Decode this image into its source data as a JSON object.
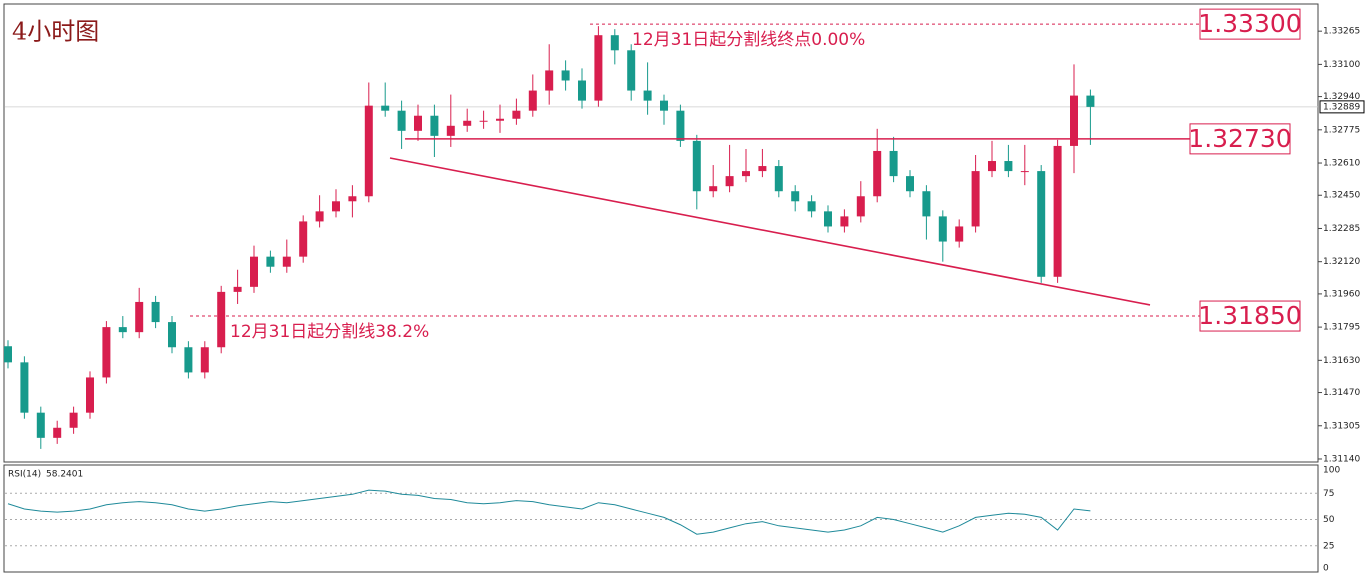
{
  "chart_data": {
    "type": "candlestick",
    "title": "4小时图",
    "up_color": "#d81e4e",
    "down_color": "#179a8c",
    "open": [
      1.317,
      1.3162,
      1.3137,
      1.31245,
      1.31295,
      1.3137,
      1.31545,
      1.31795,
      1.3177,
      1.3192,
      1.3182,
      1.31695,
      1.3157,
      1.31695,
      1.3197,
      1.31995,
      1.32145,
      1.32095,
      1.32145,
      1.3232,
      1.3237,
      1.3242,
      1.32445,
      1.32895,
      1.3287,
      1.3277,
      1.32845,
      1.32745,
      1.32795,
      1.3282,
      1.3282,
      1.3283,
      1.3287,
      1.3297,
      1.3307,
      1.3302,
      1.3292,
      1.33245,
      1.3317,
      1.3297,
      1.3292,
      1.3287,
      1.3272,
      1.3247,
      1.32495,
      1.32545,
      1.3257,
      1.32595,
      1.3247,
      1.3242,
      1.3237,
      1.32295,
      1.32345,
      1.32445,
      1.3267,
      1.32545,
      1.3247,
      1.32345,
      1.3222,
      1.32295,
      1.3257,
      1.3262,
      1.3257,
      1.3257,
      1.32045,
      1.32695,
      1.32945
    ],
    "high": [
      1.3173,
      1.3165,
      1.314,
      1.3133,
      1.314,
      1.31575,
      1.31825,
      1.3185,
      1.3199,
      1.3195,
      1.3185,
      1.31725,
      1.31725,
      1.32,
      1.3208,
      1.322,
      1.32175,
      1.3223,
      1.3235,
      1.3245,
      1.3248,
      1.325,
      1.3301,
      1.3301,
      1.3292,
      1.329,
      1.329,
      1.3295,
      1.3288,
      1.3287,
      1.329,
      1.3293,
      1.3305,
      1.332,
      1.3312,
      1.3308,
      1.3329,
      1.33275,
      1.332,
      1.3311,
      1.3295,
      1.329,
      1.3275,
      1.326,
      1.327,
      1.3268,
      1.3268,
      1.32625,
      1.325,
      1.3245,
      1.324,
      1.3238,
      1.3252,
      1.3278,
      1.3274,
      1.32575,
      1.325,
      1.32375,
      1.3233,
      1.3265,
      1.3272,
      1.327,
      1.327,
      1.326,
      1.32725,
      1.331,
      1.32975
    ],
    "low": [
      1.3159,
      1.3134,
      1.3119,
      1.31215,
      1.31265,
      1.3134,
      1.31515,
      1.3174,
      1.3174,
      1.3179,
      1.31665,
      1.3154,
      1.3154,
      1.31665,
      1.3191,
      1.31965,
      1.32065,
      1.32065,
      1.32115,
      1.3229,
      1.3234,
      1.3234,
      1.32415,
      1.3284,
      1.3268,
      1.3272,
      1.3264,
      1.3269,
      1.32765,
      1.3278,
      1.3276,
      1.328,
      1.3284,
      1.329,
      1.3297,
      1.3288,
      1.3289,
      1.331,
      1.3292,
      1.3285,
      1.328,
      1.3269,
      1.3238,
      1.3244,
      1.32465,
      1.32515,
      1.3254,
      1.3244,
      1.3237,
      1.3234,
      1.32265,
      1.32265,
      1.32315,
      1.32415,
      1.32515,
      1.3244,
      1.3223,
      1.3212,
      1.3219,
      1.32265,
      1.3254,
      1.3254,
      1.325,
      1.32015,
      1.32015,
      1.3256,
      1.327
    ],
    "close": [
      1.3162,
      1.3137,
      1.31245,
      1.31295,
      1.3137,
      1.31545,
      1.31795,
      1.3177,
      1.3192,
      1.3182,
      1.31695,
      1.3157,
      1.31695,
      1.3197,
      1.31995,
      1.32145,
      1.32095,
      1.32145,
      1.3232,
      1.3237,
      1.3242,
      1.32445,
      1.32895,
      1.3287,
      1.3277,
      1.32845,
      1.32745,
      1.32795,
      1.3282,
      1.3282,
      1.3283,
      1.3287,
      1.3297,
      1.3307,
      1.3302,
      1.3292,
      1.33245,
      1.3317,
      1.3297,
      1.3292,
      1.3287,
      1.3272,
      1.3247,
      1.32495,
      1.32545,
      1.3257,
      1.32595,
      1.3247,
      1.3242,
      1.3237,
      1.32295,
      1.32345,
      1.32445,
      1.3267,
      1.32545,
      1.3247,
      1.32345,
      1.3222,
      1.32295,
      1.3257,
      1.3262,
      1.3257,
      1.3257,
      1.32045,
      1.32695,
      1.32945,
      1.32889
    ],
    "ylim": [
      1.31125,
      1.33395
    ],
    "yticks": [
      1.33265,
      {
        "value": 1.331,
        "label": "1.33100"
      },
      {
        "value": 1.3294,
        "label": "1.32940"
      },
      1.32775,
      {
        "value": 1.3261,
        "label": "1.32610"
      },
      {
        "value": 1.3245,
        "label": "1.32450"
      },
      1.32285,
      {
        "value": 1.3212,
        "label": "1.32120"
      },
      {
        "value": 1.3196,
        "label": "1.31960"
      },
      1.31795,
      {
        "value": 1.3163,
        "label": "1.31630"
      },
      {
        "value": 1.3147,
        "label": "1.31470"
      },
      1.31305,
      {
        "value": 1.3114,
        "label": "1.31140"
      }
    ],
    "current_price": 1.32889,
    "levels": [
      {
        "value": 1.333,
        "label": "1.33300",
        "style": "dashed"
      },
      {
        "value": 1.3273,
        "label": "1.32730",
        "style": "solid"
      },
      {
        "value": 1.3185,
        "label": "1.31850",
        "style": "dashed"
      }
    ],
    "trendline": [
      1.32635,
      1.31905
    ],
    "annotations": [
      "12月31日起分割线终点0.00%",
      "12月31日起分割线38.2%"
    ],
    "rsi": {
      "name": "RSI(14)",
      "color": "#1f8a9a",
      "values": [
        65,
        60,
        58,
        57,
        58,
        60,
        64,
        66,
        67,
        66,
        64,
        60,
        58,
        60,
        63,
        65,
        67,
        66,
        68,
        70,
        72,
        74,
        78,
        77,
        74,
        73,
        70,
        69,
        66,
        65,
        66,
        68,
        67,
        64,
        62,
        60,
        66,
        64,
        60,
        56,
        52,
        45,
        36,
        38,
        42,
        46,
        48,
        44,
        42,
        40,
        38,
        40,
        44,
        52,
        50,
        46,
        42,
        38,
        44,
        52,
        54,
        56,
        55,
        52,
        40,
        60,
        58.2401
      ],
      "ylim": [
        0,
        100
      ],
      "yticks": [
        100,
        75,
        50,
        25,
        0
      ]
    }
  }
}
